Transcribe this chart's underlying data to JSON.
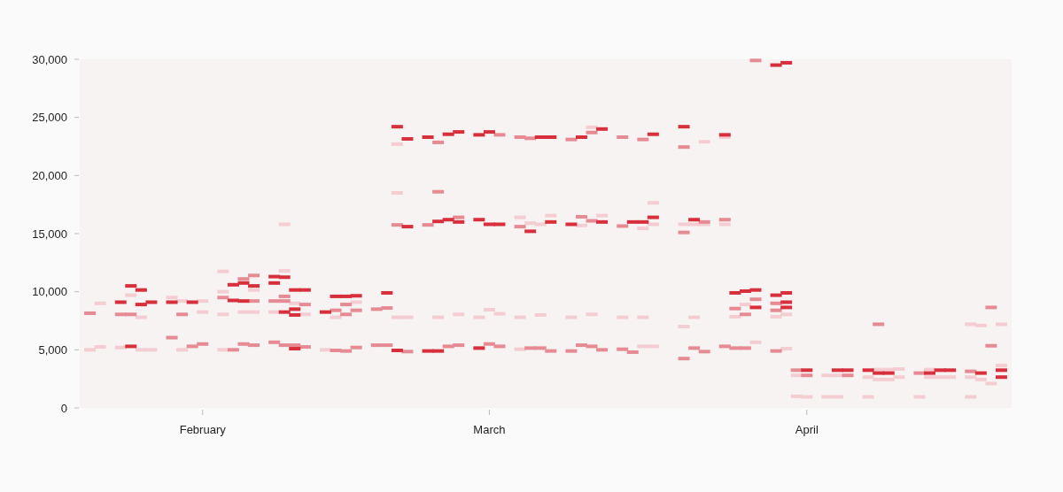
{
  "chart_data": {
    "type": "scatter",
    "xlim": [
      "--01-20",
      "--04-21"
    ],
    "xticks": [
      {
        "value": "--02-01",
        "label": "February"
      },
      {
        "value": "--03-01",
        "label": "March"
      },
      {
        "value": "--04-01",
        "label": "April"
      }
    ],
    "ylim": [
      0,
      30000
    ],
    "yticks": [
      0,
      {
        "value": 5000,
        "label": "5,000"
      },
      {
        "value": 10000,
        "label": "10,000"
      },
      {
        "value": 15000,
        "label": "15,000"
      },
      {
        "value": 20000,
        "label": "20,000"
      },
      {
        "value": 25000,
        "label": "25,000"
      },
      {
        "value": 30000,
        "label": "30,000"
      }
    ],
    "grid": false,
    "series": [
      {
        "color": "#f4cdd2",
        "x": [
          "--01-21",
          "--01-22",
          "--01-22",
          "--01-24",
          "--01-25",
          "--01-26",
          "--01-26",
          "--01-27",
          "--01-29",
          "--01-30",
          "--01-30",
          "--02-01",
          "--02-01",
          "--02-03",
          "--02-03",
          "--02-03",
          "--02-03",
          "--02-05",
          "--02-06",
          "--02-06",
          "--02-08",
          "--02-09",
          "--02-09",
          "--02-10",
          "--02-11",
          "--02-13",
          "--02-14",
          "--02-16",
          "--02-20",
          "--02-20",
          "--02-20",
          "--02-21",
          "--02-24",
          "--02-26",
          "--02-28",
          "--03-01",
          "--03-02",
          "--03-04",
          "--03-04",
          "--03-04",
          "--03-05",
          "--03-06",
          "--03-06",
          "--03-07",
          "--03-09",
          "--03-10",
          "--03-11",
          "--03-11",
          "--03-12",
          "--03-14",
          "--03-16",
          "--03-16",
          "--03-16",
          "--03-17",
          "--03-17",
          "--03-17",
          "--03-20",
          "--03-20",
          "--03-21",
          "--03-21",
          "--03-22",
          "--03-22",
          "--03-24",
          "--03-24",
          "--03-25",
          "--03-26",
          "--03-27",
          "--03-29",
          "--03-30",
          "--03-30",
          "--03-31",
          "--03-31",
          "--04-01",
          "--04-03",
          "--04-03",
          "--04-04",
          "--04-04",
          "--04-07",
          "--04-07",
          "--04-08",
          "--04-08",
          "--04-09",
          "--04-09",
          "--04-10",
          "--04-10",
          "--04-12",
          "--04-13",
          "--04-13",
          "--04-14",
          "--04-15",
          "--04-17",
          "--04-17",
          "--04-17",
          "--04-18",
          "--04-18",
          "--04-19",
          "--04-20",
          "--04-20"
        ],
        "values": [
          5000,
          9000,
          5250,
          5200,
          9700,
          7800,
          5000,
          5000,
          9500,
          9200,
          5000,
          9200,
          8250,
          11750,
          10000,
          8050,
          5000,
          8250,
          10150,
          8250,
          8250,
          11800,
          15800,
          9000,
          8050,
          5000,
          7800,
          9100,
          22700,
          18500,
          7800,
          7800,
          7800,
          8050,
          7800,
          8450,
          8100,
          16400,
          5050,
          7800,
          15900,
          15800,
          8000,
          16550,
          7800,
          15700,
          24150,
          8050,
          16550,
          7800,
          15450,
          5300,
          7800,
          17650,
          15800,
          5300,
          15800,
          7000,
          15800,
          7800,
          22900,
          15800,
          23300,
          15800,
          7850,
          8900,
          5650,
          7850,
          8050,
          5100,
          2800,
          1000,
          950,
          2800,
          950,
          2800,
          950,
          2650,
          950,
          3300,
          2450,
          3300,
          2450,
          3350,
          2650,
          950,
          3300,
          2650,
          2650,
          2650,
          7200,
          950,
          2650,
          7100,
          2450,
          2100,
          3650,
          7200
        ]
      },
      {
        "color": "#e68a94",
        "x": [
          "--01-21",
          "--01-24",
          "--01-25",
          "--01-29",
          "--01-30",
          "--01-31",
          "--02-01",
          "--02-03",
          "--02-04",
          "--02-05",
          "--02-05",
          "--02-06",
          "--02-06",
          "--02-06",
          "--02-08",
          "--02-08",
          "--02-09",
          "--02-09",
          "--02-09",
          "--02-10",
          "--02-11",
          "--02-11",
          "--02-14",
          "--02-14",
          "--02-15",
          "--02-15",
          "--02-15",
          "--02-16",
          "--02-16",
          "--02-18",
          "--02-18",
          "--02-19",
          "--02-19",
          "--02-20",
          "--02-21",
          "--02-23",
          "--02-24",
          "--02-24",
          "--02-25",
          "--02-26",
          "--02-26",
          "--03-01",
          "--03-02",
          "--03-02",
          "--03-04",
          "--03-04",
          "--03-05",
          "--03-05",
          "--03-06",
          "--03-07",
          "--03-09",
          "--03-09",
          "--03-10",
          "--03-10",
          "--03-11",
          "--03-11",
          "--03-11",
          "--03-12",
          "--03-14",
          "--03-14",
          "--03-14",
          "--03-15",
          "--03-16",
          "--03-20",
          "--03-20",
          "--03-20",
          "--03-21",
          "--03-22",
          "--03-22",
          "--03-24",
          "--03-24",
          "--03-25",
          "--03-25",
          "--03-26",
          "--03-26",
          "--03-27",
          "--03-27",
          "--03-29",
          "--03-29",
          "--03-29",
          "--03-31",
          "--04-01",
          "--04-05",
          "--04-08",
          "--04-12",
          "--04-17",
          "--04-19",
          "--04-19"
        ],
        "values": [
          8150,
          8050,
          8050,
          6050,
          8050,
          5300,
          5500,
          9500,
          5000,
          11100,
          5500,
          11400,
          9200,
          5400,
          9200,
          5650,
          9600,
          9200,
          5400,
          5400,
          8900,
          5250,
          8400,
          4950,
          8900,
          8050,
          4900,
          8400,
          5200,
          8500,
          5400,
          8600,
          5400,
          15750,
          4850,
          15750,
          22850,
          18600,
          5300,
          16400,
          5400,
          5500,
          23500,
          5300,
          23300,
          15600,
          23200,
          5150,
          5150,
          4900,
          23100,
          4900,
          16450,
          5400,
          23700,
          16100,
          5300,
          5000,
          23300,
          15650,
          5050,
          4800,
          23100,
          22450,
          15100,
          4250,
          5150,
          16000,
          4850,
          16200,
          5300,
          8550,
          5150,
          8050,
          5150,
          29900,
          9350,
          9000,
          8400,
          4900,
          3250,
          2800,
          2800,
          7200,
          3000,
          3150,
          8650,
          5350
        ]
      },
      {
        "color": "#d7303c",
        "x": [
          "--01-24",
          "--01-25",
          "--01-25",
          "--01-26",
          "--01-26",
          "--01-27",
          "--01-29",
          "--01-31",
          "--02-04",
          "--02-04",
          "--02-05",
          "--02-05",
          "--02-06",
          "--02-08",
          "--02-08",
          "--02-09",
          "--02-09",
          "--02-10",
          "--02-10",
          "--02-10",
          "--02-10",
          "--02-11",
          "--02-13",
          "--02-14",
          "--02-15",
          "--02-16",
          "--02-19",
          "--02-20",
          "--02-20",
          "--02-21",
          "--02-21",
          "--02-23",
          "--02-23",
          "--02-24",
          "--02-24",
          "--02-25",
          "--02-25",
          "--02-26",
          "--02-26",
          "--02-28",
          "--02-28",
          "--02-28",
          "--03-01",
          "--03-01",
          "--03-02",
          "--03-05",
          "--03-06",
          "--03-07",
          "--03-07",
          "--03-09",
          "--03-10",
          "--03-12",
          "--03-12",
          "--03-15",
          "--03-16",
          "--03-17",
          "--03-17",
          "--03-20",
          "--03-21",
          "--03-24",
          "--03-25",
          "--03-26",
          "--03-27",
          "--03-27",
          "--03-29",
          "--03-29",
          "--03-30",
          "--03-30",
          "--03-30",
          "--03-30",
          "--04-01",
          "--04-04",
          "--04-05",
          "--04-07",
          "--04-08",
          "--04-09",
          "--04-13",
          "--04-14",
          "--04-15",
          "--04-18",
          "--04-20",
          "--04-20"
        ],
        "values": [
          9100,
          10500,
          5300,
          10150,
          8900,
          9100,
          9100,
          9100,
          10600,
          9250,
          10750,
          9200,
          10500,
          11300,
          10750,
          11250,
          8250,
          10150,
          8500,
          8000,
          5100,
          10150,
          8250,
          9600,
          9600,
          9650,
          9900,
          24200,
          4950,
          23150,
          15600,
          23300,
          4900,
          16050,
          4900,
          23550,
          16200,
          23750,
          16000,
          23500,
          16200,
          5150,
          23750,
          15800,
          15800,
          15200,
          23300,
          23300,
          16000,
          15800,
          23300,
          24000,
          16000,
          16000,
          16000,
          23550,
          16400,
          24200,
          16200,
          23500,
          9900,
          10050,
          10150,
          8650,
          29500,
          9700,
          29700,
          9900,
          9100,
          8650,
          3250,
          3250,
          3250,
          3250,
          3000,
          3000,
          3000,
          3250,
          3250,
          3000,
          3250,
          2650
        ]
      }
    ]
  }
}
